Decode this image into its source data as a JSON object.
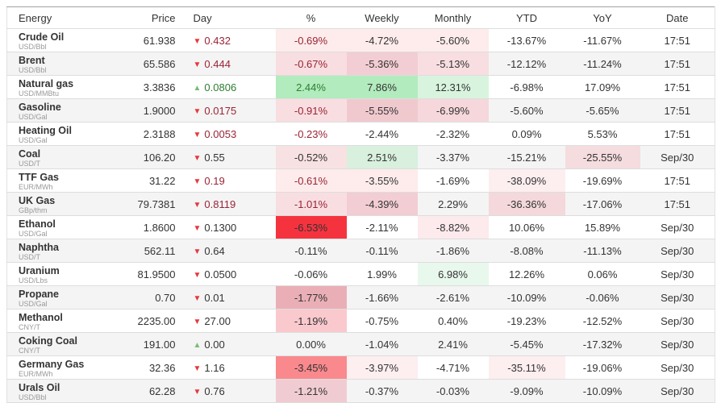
{
  "colors": {
    "neg_text": "#9b2335",
    "pos_text": "#2e7d32",
    "plain_text": "#333333",
    "down_arrow": "#e5383b",
    "up_arrow": "#77bd77",
    "stripe_bg": "#f4f4f4",
    "heat_red_bright": "#f5333f",
    "heat_green_medium": "#b2ebbd"
  },
  "header": {
    "columns": [
      {
        "label": "Energy",
        "align": "al"
      },
      {
        "label": "Price",
        "align": "ar"
      },
      {
        "label": "Day",
        "align": "day-col"
      },
      {
        "label": "%",
        "align": "ac"
      },
      {
        "label": "Weekly",
        "align": "ac"
      },
      {
        "label": "Monthly",
        "align": "ac"
      },
      {
        "label": "YTD",
        "align": "ac"
      },
      {
        "label": "YoY",
        "align": "ac"
      },
      {
        "label": "Date",
        "align": "ac"
      }
    ]
  },
  "rows": [
    {
      "name": "Crude Oil",
      "unit": "USD/Bbl",
      "price": "61.938",
      "day": {
        "value": "0.432",
        "direction": "down",
        "colored": true
      },
      "cells": [
        {
          "text": "-0.69%",
          "bg": "#fdeceb",
          "color": "neg"
        },
        {
          "text": "-4.72%",
          "bg": "#fdeceb"
        },
        {
          "text": "-5.60%",
          "bg": "#fdeceb"
        },
        {
          "text": "-13.67%"
        },
        {
          "text": "-11.67%"
        },
        {
          "text": "17:51"
        }
      ]
    },
    {
      "name": "Brent",
      "unit": "USD/Bbl",
      "price": "65.586",
      "day": {
        "value": "0.444",
        "direction": "down",
        "colored": true
      },
      "cells": [
        {
          "text": "-0.67%",
          "bg": "#f8dee1",
          "color": "neg"
        },
        {
          "text": "-5.36%",
          "bg": "#f2cdd3"
        },
        {
          "text": "-5.13%",
          "bg": "#f8dee1"
        },
        {
          "text": "-12.12%"
        },
        {
          "text": "-11.24%"
        },
        {
          "text": "17:51"
        }
      ]
    },
    {
      "name": "Natural gas",
      "unit": "USD/MMBtu",
      "price": "3.3836",
      "day": {
        "value": "0.0806",
        "direction": "up",
        "colored": true
      },
      "cells": [
        {
          "text": "2.44%",
          "bg": "#b2ebbd",
          "color": "pos"
        },
        {
          "text": "7.86%",
          "bg": "#b2ebbd"
        },
        {
          "text": "12.31%",
          "bg": "#d8f4de"
        },
        {
          "text": "-6.98%"
        },
        {
          "text": "17.09%"
        },
        {
          "text": "17:51"
        }
      ]
    },
    {
      "name": "Gasoline",
      "unit": "USD/Gal",
      "price": "1.9000",
      "day": {
        "value": "0.0175",
        "direction": "down",
        "colored": true
      },
      "cells": [
        {
          "text": "-0.91%",
          "bg": "#f8dee1",
          "color": "neg"
        },
        {
          "text": "-5.55%",
          "bg": "#f0c9cf"
        },
        {
          "text": "-6.99%",
          "bg": "#f6d7db"
        },
        {
          "text": "-5.60%"
        },
        {
          "text": "-5.65%"
        },
        {
          "text": "17:51"
        }
      ]
    },
    {
      "name": "Heating Oil",
      "unit": "USD/Gal",
      "price": "2.3188",
      "day": {
        "value": "0.0053",
        "direction": "down",
        "colored": true
      },
      "cells": [
        {
          "text": "-0.23%",
          "color": "neg"
        },
        {
          "text": "-2.44%"
        },
        {
          "text": "-2.32%"
        },
        {
          "text": "0.09%"
        },
        {
          "text": "5.53%"
        },
        {
          "text": "17:51"
        }
      ]
    },
    {
      "name": "Coal",
      "unit": "USD/T",
      "price": "106.20",
      "day": {
        "value": "0.55",
        "direction": "down",
        "colored": false
      },
      "cells": [
        {
          "text": "-0.52%",
          "bg": "#f8e1e2"
        },
        {
          "text": "2.51%",
          "bg": "#d8f0dd"
        },
        {
          "text": "-3.37%"
        },
        {
          "text": "-15.21%"
        },
        {
          "text": "-25.55%",
          "bg": "#f5dcde"
        },
        {
          "text": "Sep/30"
        }
      ]
    },
    {
      "name": "TTF Gas",
      "unit": "EUR/MWh",
      "price": "31.22",
      "day": {
        "value": "0.19",
        "direction": "down",
        "colored": true
      },
      "cells": [
        {
          "text": "-0.61%",
          "bg": "#fdeceb",
          "color": "neg"
        },
        {
          "text": "-3.55%",
          "bg": "#fdeceb"
        },
        {
          "text": "-1.69%"
        },
        {
          "text": "-38.09%",
          "bg": "#fdeef0"
        },
        {
          "text": "-19.69%"
        },
        {
          "text": "17:51"
        }
      ]
    },
    {
      "name": "UK Gas",
      "unit": "GBp/thm",
      "price": "79.7381",
      "day": {
        "value": "0.8119",
        "direction": "down",
        "colored": true
      },
      "cells": [
        {
          "text": "-1.01%",
          "bg": "#f8dee1",
          "color": "neg"
        },
        {
          "text": "-4.39%",
          "bg": "#f2cdd3"
        },
        {
          "text": "2.29%"
        },
        {
          "text": "-36.36%",
          "bg": "#f4d8db"
        },
        {
          "text": "-17.06%"
        },
        {
          "text": "17:51"
        }
      ]
    },
    {
      "name": "Ethanol",
      "unit": "USD/Gal",
      "price": "1.8600",
      "day": {
        "value": "0.1300",
        "direction": "down",
        "colored": false
      },
      "cells": [
        {
          "text": "-6.53%",
          "bg": "#f5333f"
        },
        {
          "text": "-2.11%"
        },
        {
          "text": "-8.82%",
          "bg": "#fdeaec"
        },
        {
          "text": "10.06%"
        },
        {
          "text": "15.89%"
        },
        {
          "text": "Sep/30"
        }
      ]
    },
    {
      "name": "Naphtha",
      "unit": "USD/T",
      "price": "562.11",
      "day": {
        "value": "0.64",
        "direction": "down",
        "colored": false
      },
      "cells": [
        {
          "text": "-0.11%"
        },
        {
          "text": "-0.11%"
        },
        {
          "text": "-1.86%"
        },
        {
          "text": "-8.08%"
        },
        {
          "text": "-11.13%"
        },
        {
          "text": "Sep/30"
        }
      ]
    },
    {
      "name": "Uranium",
      "unit": "USD/Lbs",
      "price": "81.9500",
      "day": {
        "value": "0.0500",
        "direction": "down",
        "colored": false
      },
      "cells": [
        {
          "text": "-0.06%"
        },
        {
          "text": "1.99%"
        },
        {
          "text": "6.98%",
          "bg": "#e9f8ed"
        },
        {
          "text": "12.26%"
        },
        {
          "text": "0.06%"
        },
        {
          "text": "Sep/30"
        }
      ]
    },
    {
      "name": "Propane",
      "unit": "USD/Gal",
      "price": "0.70",
      "day": {
        "value": "0.01",
        "direction": "down",
        "colored": false
      },
      "cells": [
        {
          "text": "-1.77%",
          "bg": "#eaafb6"
        },
        {
          "text": "-1.66%"
        },
        {
          "text": "-2.61%"
        },
        {
          "text": "-10.09%"
        },
        {
          "text": "-0.06%"
        },
        {
          "text": "Sep/30"
        }
      ]
    },
    {
      "name": "Methanol",
      "unit": "CNY/T",
      "price": "2235.00",
      "day": {
        "value": "27.00",
        "direction": "down",
        "colored": false
      },
      "cells": [
        {
          "text": "-1.19%",
          "bg": "#f9c9ce"
        },
        {
          "text": "-0.75%"
        },
        {
          "text": "0.40%"
        },
        {
          "text": "-19.23%"
        },
        {
          "text": "-12.52%"
        },
        {
          "text": "Sep/30"
        }
      ]
    },
    {
      "name": "Coking Coal",
      "unit": "CNY/T",
      "price": "191.00",
      "day": {
        "value": "0.00",
        "direction": "up",
        "colored": false
      },
      "cells": [
        {
          "text": "0.00%"
        },
        {
          "text": "-1.04%"
        },
        {
          "text": "2.41%"
        },
        {
          "text": "-5.45%"
        },
        {
          "text": "-17.32%"
        },
        {
          "text": "Sep/30"
        }
      ]
    },
    {
      "name": "Germany Gas",
      "unit": "EUR/MWh",
      "price": "32.36",
      "day": {
        "value": "1.16",
        "direction": "down",
        "colored": false
      },
      "cells": [
        {
          "text": "-3.45%",
          "bg": "#f9898d"
        },
        {
          "text": "-3.97%",
          "bg": "#fdeef0"
        },
        {
          "text": "-4.71%"
        },
        {
          "text": "-35.11%",
          "bg": "#fdeef0"
        },
        {
          "text": "-19.06%"
        },
        {
          "text": "Sep/30"
        }
      ]
    },
    {
      "name": "Urals Oil",
      "unit": "USD/Bbl",
      "price": "62.28",
      "day": {
        "value": "0.76",
        "direction": "down",
        "colored": false
      },
      "cells": [
        {
          "text": "-1.21%",
          "bg": "#f0ccd2"
        },
        {
          "text": "-0.37%"
        },
        {
          "text": "-0.03%"
        },
        {
          "text": "-9.09%"
        },
        {
          "text": "-10.09%"
        },
        {
          "text": "Sep/30"
        }
      ]
    }
  ]
}
